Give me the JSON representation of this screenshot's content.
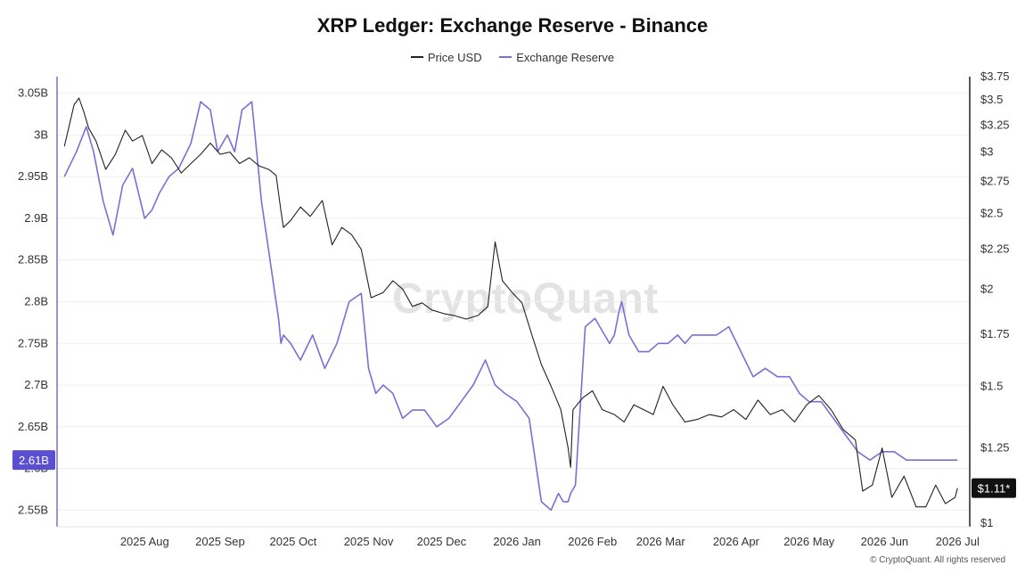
{
  "chart_data": {
    "type": "line",
    "title": "XRP Ledger: Exchange Reserve - Binance",
    "credit": "© CryptoQuant. All rights reserved",
    "watermark": "CryptoQuant",
    "legend_placement": "top-center",
    "grid": true,
    "x_ticks": [
      "2025 Aug",
      "2025 Sep",
      "2025 Oct",
      "2025 Nov",
      "2025 Dec",
      "2026 Jan",
      "2026 Feb",
      "2026 Mar",
      "2026 Apr",
      "2026 May",
      "2026 Jun",
      "2026 Jul"
    ],
    "y_left": {
      "ylim": [
        2.53,
        3.07
      ],
      "ticks": [
        3.05,
        3.0,
        2.95,
        2.9,
        2.85,
        2.8,
        2.75,
        2.7,
        2.65,
        2.6,
        2.55
      ],
      "tick_labels": [
        "3.05B",
        "3B",
        "2.95B",
        "2.9B",
        "2.85B",
        "2.8B",
        "2.75B",
        "2.7B",
        "2.65B",
        "2.6B",
        "2.55B"
      ],
      "current_label": "2.61B",
      "current_value": 2.61
    },
    "y_right": {
      "scale": "log",
      "ylim": [
        0.99,
        3.75
      ],
      "ticks": [
        3.75,
        3.5,
        3.25,
        3.0,
        2.75,
        2.5,
        2.25,
        2.0,
        1.75,
        1.5,
        1.25,
        1.0
      ],
      "tick_labels": [
        "$3.75",
        "$3.5",
        "$3.25",
        "$3",
        "$2.75",
        "$2.5",
        "$2.25",
        "$2",
        "$1.75",
        "$1.5",
        "$1.25",
        "$1"
      ],
      "current_label": "$1.11*",
      "current_value": 1.11
    },
    "series": [
      {
        "name": "Exchange Reserve",
        "axis": "left",
        "color": "#7b6fd6",
        "x": [
          "2025-07-13",
          "2025-07-18",
          "2025-07-22",
          "2025-07-25",
          "2025-07-29",
          "2025-08-02",
          "2025-08-06",
          "2025-08-10",
          "2025-08-15",
          "2025-08-18",
          "2025-08-21",
          "2025-08-25",
          "2025-08-29",
          "2025-09-03",
          "2025-09-07",
          "2025-09-11",
          "2025-09-14",
          "2025-09-18",
          "2025-09-21",
          "2025-09-24",
          "2025-09-28",
          "2025-10-02",
          "2025-10-05",
          "2025-10-07",
          "2025-10-09",
          "2025-10-10",
          "2025-10-11",
          "2025-10-14",
          "2025-10-18",
          "2025-10-23",
          "2025-10-28",
          "2025-11-02",
          "2025-11-07",
          "2025-11-12",
          "2025-11-15",
          "2025-11-18",
          "2025-11-21",
          "2025-11-25",
          "2025-11-29",
          "2025-12-03",
          "2025-12-08",
          "2025-12-13",
          "2025-12-18",
          "2025-12-23",
          "2025-12-28",
          "2026-01-02",
          "2026-01-06",
          "2026-01-10",
          "2026-01-15",
          "2026-01-20",
          "2026-01-25",
          "2026-01-29",
          "2026-02-01",
          "2026-02-03",
          "2026-02-05",
          "2026-02-06",
          "2026-02-08",
          "2026-02-12",
          "2026-02-16",
          "2026-02-20",
          "2026-02-22",
          "2026-02-24",
          "2026-02-26",
          "2026-02-27",
          "2026-03-02",
          "2026-03-06",
          "2026-03-10",
          "2026-03-14",
          "2026-03-18",
          "2026-03-22",
          "2026-03-25",
          "2026-03-28",
          "2026-04-02",
          "2026-04-07",
          "2026-04-12",
          "2026-04-17",
          "2026-04-22",
          "2026-04-27",
          "2026-05-02",
          "2026-05-07",
          "2026-05-11",
          "2026-05-15",
          "2026-05-20",
          "2026-05-25",
          "2026-05-30",
          "2026-06-04",
          "2026-06-09",
          "2026-06-14",
          "2026-06-19",
          "2026-06-24",
          "2026-06-28",
          "2026-07-01",
          "2026-07-05",
          "2026-07-09",
          "2026-07-13",
          "2026-07-15"
        ],
        "values": [
          2.95,
          2.98,
          3.01,
          2.98,
          2.92,
          2.88,
          2.94,
          2.96,
          2.9,
          2.91,
          2.93,
          2.95,
          2.96,
          2.99,
          3.04,
          3.03,
          2.98,
          3.0,
          2.98,
          3.03,
          3.04,
          2.92,
          2.86,
          2.82,
          2.78,
          2.75,
          2.76,
          2.75,
          2.73,
          2.76,
          2.72,
          2.75,
          2.8,
          2.81,
          2.72,
          2.69,
          2.7,
          2.69,
          2.66,
          2.67,
          2.67,
          2.65,
          2.66,
          2.68,
          2.7,
          2.73,
          2.7,
          2.69,
          2.68,
          2.66,
          2.56,
          2.55,
          2.57,
          2.56,
          2.56,
          2.57,
          2.58,
          2.77,
          2.78,
          2.76,
          2.75,
          2.76,
          2.79,
          2.8,
          2.76,
          2.74,
          2.74,
          2.75,
          2.75,
          2.76,
          2.75,
          2.76,
          2.76,
          2.76,
          2.77,
          2.74,
          2.71,
          2.72,
          2.71,
          2.71,
          2.69,
          2.68,
          2.68,
          2.66,
          2.64,
          2.62,
          2.61,
          2.62,
          2.62,
          2.61,
          2.61,
          2.61,
          2.61,
          2.61,
          2.61,
          2.61
        ]
      },
      {
        "name": "Price USD",
        "axis": "right",
        "color": "#222222",
        "x": [
          "2025-07-13",
          "2025-07-17",
          "2025-07-19",
          "2025-07-21",
          "2025-07-23",
          "2025-07-26",
          "2025-07-30",
          "2025-08-03",
          "2025-08-07",
          "2025-08-10",
          "2025-08-14",
          "2025-08-18",
          "2025-08-22",
          "2025-08-26",
          "2025-08-30",
          "2025-09-03",
          "2025-09-07",
          "2025-09-11",
          "2025-09-15",
          "2025-09-19",
          "2025-09-23",
          "2025-09-27",
          "2025-10-01",
          "2025-10-05",
          "2025-10-08",
          "2025-10-10",
          "2025-10-11",
          "2025-10-14",
          "2025-10-18",
          "2025-10-22",
          "2025-10-27",
          "2025-10-31",
          "2025-11-04",
          "2025-11-08",
          "2025-11-12",
          "2025-11-16",
          "2025-11-21",
          "2025-11-25",
          "2025-11-29",
          "2025-12-03",
          "2025-12-07",
          "2025-12-11",
          "2025-12-16",
          "2025-12-20",
          "2025-12-25",
          "2025-12-30",
          "2026-01-03",
          "2026-01-06",
          "2026-01-09",
          "2026-01-13",
          "2026-01-17",
          "2026-01-21",
          "2026-01-25",
          "2026-01-29",
          "2026-02-02",
          "2026-02-05",
          "2026-02-06",
          "2026-02-07",
          "2026-02-11",
          "2026-02-15",
          "2026-02-19",
          "2026-02-24",
          "2026-02-28",
          "2026-03-04",
          "2026-03-08",
          "2026-03-12",
          "2026-03-16",
          "2026-03-20",
          "2026-03-25",
          "2026-03-30",
          "2026-04-04",
          "2026-04-09",
          "2026-04-14",
          "2026-04-19",
          "2026-04-24",
          "2026-04-29",
          "2026-05-04",
          "2026-05-09",
          "2026-05-14",
          "2026-05-19",
          "2026-05-24",
          "2026-05-29",
          "2026-06-03",
          "2026-06-06",
          "2026-06-10",
          "2026-06-14",
          "2026-06-18",
          "2026-06-23",
          "2026-06-28",
          "2026-07-02",
          "2026-07-06",
          "2026-07-10",
          "2026-07-14",
          "2026-07-15"
        ],
        "values": [
          3.05,
          3.45,
          3.52,
          3.38,
          3.22,
          3.1,
          2.85,
          2.98,
          3.2,
          3.1,
          3.15,
          2.9,
          3.02,
          2.95,
          2.82,
          2.9,
          2.98,
          3.08,
          2.98,
          3.0,
          2.9,
          2.95,
          2.88,
          2.85,
          2.8,
          2.52,
          2.4,
          2.45,
          2.55,
          2.48,
          2.6,
          2.28,
          2.4,
          2.35,
          2.25,
          1.95,
          1.98,
          2.05,
          2.0,
          1.9,
          1.92,
          1.88,
          1.86,
          1.85,
          1.83,
          1.85,
          1.9,
          2.3,
          2.05,
          1.98,
          1.92,
          1.75,
          1.6,
          1.5,
          1.4,
          1.25,
          1.18,
          1.4,
          1.45,
          1.48,
          1.4,
          1.38,
          1.35,
          1.42,
          1.4,
          1.38,
          1.5,
          1.42,
          1.35,
          1.36,
          1.38,
          1.37,
          1.4,
          1.36,
          1.44,
          1.38,
          1.4,
          1.35,
          1.42,
          1.46,
          1.4,
          1.32,
          1.28,
          1.1,
          1.12,
          1.25,
          1.08,
          1.15,
          1.05,
          1.05,
          1.12,
          1.06,
          1.08,
          1.11
        ]
      }
    ]
  }
}
